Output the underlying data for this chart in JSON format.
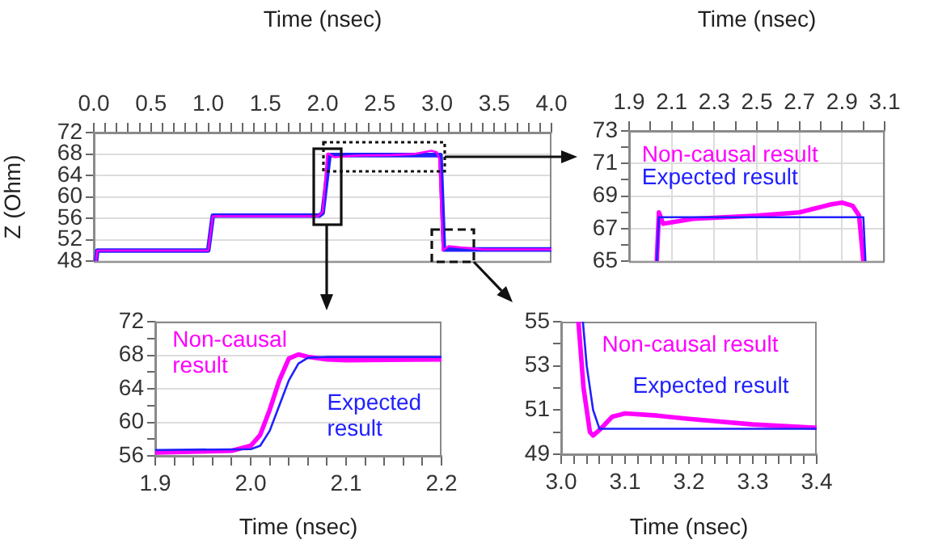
{
  "chart_data": [
    {
      "type": "line",
      "xlabel": "Time (nsec)",
      "ylabel": "Z (Ohm)",
      "xlim": [
        0,
        4
      ],
      "ylim": [
        48,
        72
      ],
      "xticks": [
        {
          "value": 0,
          "label": "0.0"
        },
        {
          "value": 0.1,
          "label": null
        },
        {
          "value": 0.2,
          "label": null
        },
        {
          "value": 0.3,
          "label": null
        },
        {
          "value": 0.4,
          "label": null
        },
        {
          "value": 0.5,
          "label": "0.5"
        },
        {
          "value": 0.6,
          "label": null
        },
        {
          "value": 0.7,
          "label": null
        },
        {
          "value": 0.8,
          "label": null
        },
        {
          "value": 0.9,
          "label": null
        },
        {
          "value": 1,
          "label": "1.0"
        },
        {
          "value": 1.1,
          "label": null
        },
        {
          "value": 1.2,
          "label": null
        },
        {
          "value": 1.3,
          "label": null
        },
        {
          "value": 1.4,
          "label": null
        },
        {
          "value": 1.5,
          "label": "1.5"
        },
        {
          "value": 1.6,
          "label": null
        },
        {
          "value": 1.7,
          "label": null
        },
        {
          "value": 1.8,
          "label": null
        },
        {
          "value": 1.9,
          "label": null
        },
        {
          "value": 2,
          "label": "2.0"
        },
        {
          "value": 2.1,
          "label": null
        },
        {
          "value": 2.2,
          "label": null
        },
        {
          "value": 2.3,
          "label": null
        },
        {
          "value": 2.4,
          "label": null
        },
        {
          "value": 2.5,
          "label": "2.5"
        },
        {
          "value": 2.6,
          "label": null
        },
        {
          "value": 2.7,
          "label": null
        },
        {
          "value": 2.8,
          "label": null
        },
        {
          "value": 2.9,
          "label": null
        },
        {
          "value": 3,
          "label": "3.0"
        },
        {
          "value": 3.1,
          "label": null
        },
        {
          "value": 3.2,
          "label": null
        },
        {
          "value": 3.3,
          "label": null
        },
        {
          "value": 3.4,
          "label": null
        },
        {
          "value": 3.5,
          "label": "3.5"
        },
        {
          "value": 3.6,
          "label": null
        },
        {
          "value": 3.7,
          "label": null
        },
        {
          "value": 3.8,
          "label": null
        },
        {
          "value": 3.9,
          "label": null
        },
        {
          "value": 4,
          "label": "4.0"
        }
      ],
      "yticks": [
        48,
        52,
        56,
        60,
        64,
        68,
        72
      ],
      "grid": "y",
      "legend": false,
      "series": [
        {
          "color": "#2020ff",
          "x": [
            0.02,
            0.03,
            1.0,
            1.04,
            1.97,
            2.0,
            2.06,
            3.0,
            3.03,
            3.06,
            4.0
          ],
          "values": [
            48,
            50,
            50,
            56.5,
            56.5,
            57,
            67.8,
            67.8,
            67.8,
            50.2,
            50.2
          ]
        },
        {
          "color": "#ff00ff",
          "x": [
            0.02,
            0.03,
            1.0,
            1.04,
            1.96,
            2.0,
            2.04,
            2.05,
            2.1,
            2.3,
            2.6,
            2.8,
            2.95,
            3.0,
            3.02,
            3.05,
            3.1,
            3.2,
            3.4,
            4.0
          ],
          "values": [
            48,
            50,
            50,
            56.4,
            56.4,
            57.2,
            68,
            68.1,
            67.4,
            67.7,
            67.8,
            68,
            68.6,
            68.3,
            67,
            50,
            50.8,
            50.6,
            50.2,
            50.2
          ]
        }
      ]
    },
    {
      "type": "line",
      "xlabel": "Time (nsec)",
      "xlim": [
        1.9,
        3.1
      ],
      "ylim": [
        65,
        73
      ],
      "xticks": [
        1.9,
        {
          "value": 2.0,
          "label": null
        },
        2.1,
        {
          "value": 2.2,
          "label": null
        },
        2.3,
        {
          "value": 2.4,
          "label": null
        },
        2.5,
        {
          "value": 2.6,
          "label": null
        },
        2.7,
        {
          "value": 2.8,
          "label": null
        },
        2.9,
        {
          "value": 3.0,
          "label": null
        },
        3.1
      ],
      "yticks": [
        65,
        {
          "value": 66,
          "label": null
        },
        67,
        {
          "value": 68,
          "label": null
        },
        69,
        {
          "value": 70,
          "label": null
        },
        71,
        {
          "value": 72,
          "label": null
        },
        73
      ],
      "grid": true,
      "legend": false,
      "series": [
        {
          "name": "Non-causal result",
          "color": "#ff00ff",
          "x": [
            2.03,
            2.04,
            2.06,
            2.2,
            2.5,
            2.7,
            2.85,
            2.9,
            2.95,
            2.98,
            3.0
          ],
          "values": [
            65,
            68.0,
            67.3,
            67.6,
            67.8,
            68.0,
            68.5,
            68.6,
            68.4,
            67.8,
            65
          ]
        },
        {
          "name": "Expected result",
          "color": "#2020ff",
          "x": [
            2.03,
            2.04,
            3.0,
            3.01
          ],
          "values": [
            65,
            67.7,
            67.7,
            65
          ]
        }
      ]
    },
    {
      "type": "line",
      "xlabel": "Time (nsec)",
      "xlim": [
        1.9,
        2.2
      ],
      "ylim": [
        56,
        72
      ],
      "xticks": [
        1.9,
        {
          "value": 1.92,
          "label": null
        },
        {
          "value": 1.94,
          "label": null
        },
        {
          "value": 1.96,
          "label": null
        },
        {
          "value": 1.98,
          "label": null
        },
        {
          "value": 2,
          "label": "2.0"
        },
        {
          "value": 2.02,
          "label": null
        },
        {
          "value": 2.04,
          "label": null
        },
        {
          "value": 2.06,
          "label": null
        },
        {
          "value": 2.08,
          "label": null
        },
        2.1,
        {
          "value": 2.12,
          "label": null
        },
        {
          "value": 2.14,
          "label": null
        },
        {
          "value": 2.16,
          "label": null
        },
        {
          "value": 2.18,
          "label": null
        },
        2.2
      ],
      "yticks": [
        56,
        {
          "value": 58,
          "label": null
        },
        60,
        {
          "value": 62,
          "label": null
        },
        64,
        {
          "value": 66,
          "label": null
        },
        68,
        {
          "value": 70,
          "label": null
        },
        72
      ],
      "grid": "y",
      "legend": false,
      "series": [
        {
          "name": "Non-causal result",
          "color": "#ff00ff",
          "x": [
            1.9,
            1.98,
            2.0,
            2.01,
            2.02,
            2.03,
            2.04,
            2.05,
            2.06,
            2.08,
            2.1,
            2.2
          ],
          "values": [
            56.4,
            56.6,
            57.2,
            58.5,
            61.5,
            65,
            67.6,
            68.1,
            67.8,
            67.5,
            67.4,
            67.5
          ]
        },
        {
          "name": "Expected result",
          "color": "#2020ff",
          "x": [
            1.9,
            2.0,
            2.01,
            2.02,
            2.03,
            2.04,
            2.05,
            2.06,
            2.08,
            2.2
          ],
          "values": [
            56.7,
            56.8,
            57.2,
            59,
            62,
            65,
            67,
            67.7,
            67.8,
            67.8
          ]
        }
      ]
    },
    {
      "type": "line",
      "xlabel": "Time (nsec)",
      "xlim": [
        3.0,
        3.4
      ],
      "ylim": [
        49,
        55
      ],
      "xticks": [
        {
          "value": 3,
          "label": "3.0"
        },
        {
          "value": 3.02,
          "label": null
        },
        {
          "value": 3.04,
          "label": null
        },
        {
          "value": 3.06,
          "label": null
        },
        {
          "value": 3.08,
          "label": null
        },
        3.1,
        {
          "value": 3.12,
          "label": null
        },
        {
          "value": 3.14,
          "label": null
        },
        {
          "value": 3.16,
          "label": null
        },
        {
          "value": 3.18,
          "label": null
        },
        3.2,
        {
          "value": 3.22,
          "label": null
        },
        {
          "value": 3.24,
          "label": null
        },
        {
          "value": 3.26,
          "label": null
        },
        {
          "value": 3.28,
          "label": null
        },
        3.3,
        {
          "value": 3.32,
          "label": null
        },
        {
          "value": 3.34,
          "label": null
        },
        {
          "value": 3.36,
          "label": null
        },
        {
          "value": 3.38,
          "label": null
        },
        3.4
      ],
      "yticks": [
        49,
        {
          "value": 50,
          "label": null
        },
        51,
        {
          "value": 52,
          "label": null
        },
        53,
        {
          "value": 54,
          "label": null
        },
        55
      ],
      "legend": false,
      "series": [
        {
          "name": "Non-causal result",
          "color": "#ff00ff",
          "x": [
            3.027,
            3.035,
            3.045,
            3.05,
            3.06,
            3.08,
            3.1,
            3.15,
            3.2,
            3.3,
            3.4
          ],
          "values": [
            55,
            52,
            50.0,
            49.85,
            50.1,
            50.7,
            50.85,
            50.75,
            50.6,
            50.35,
            50.2
          ]
        },
        {
          "name": "Expected result",
          "color": "#2020ff",
          "x": [
            3.034,
            3.04,
            3.05,
            3.06,
            3.4
          ],
          "values": [
            55,
            53,
            51,
            50.15,
            50.15
          ]
        }
      ]
    }
  ]
}
